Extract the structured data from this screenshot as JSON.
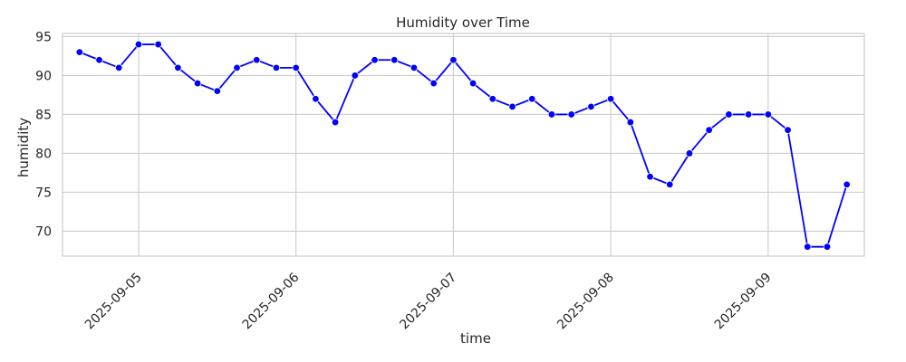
{
  "chart_data": {
    "type": "line",
    "title": "Humidity over Time",
    "xlabel": "time",
    "ylabel": "humidity",
    "x_ticks": [
      "2025-09-05",
      "2025-09-06",
      "2025-09-07",
      "2025-09-08",
      "2025-09-09"
    ],
    "y_ticks": [
      70,
      75,
      80,
      85,
      90,
      95
    ],
    "ylim": [
      66.8,
      95.4
    ],
    "xlim": [
      "2025-09-04 12:24",
      "2025-09-09 14:40"
    ],
    "grid": true,
    "series_color": "#0000ff",
    "marker": "circle",
    "series": [
      {
        "x": [
          "2025-09-04 15:00",
          "2025-09-04 18:00",
          "2025-09-04 21:00",
          "2025-09-05 00:00",
          "2025-09-05 03:00",
          "2025-09-05 06:00",
          "2025-09-05 09:00",
          "2025-09-05 12:00",
          "2025-09-05 15:00",
          "2025-09-05 18:00",
          "2025-09-05 21:00",
          "2025-09-06 00:00",
          "2025-09-06 03:00",
          "2025-09-06 06:00",
          "2025-09-06 09:00",
          "2025-09-06 12:00",
          "2025-09-06 15:00",
          "2025-09-06 18:00",
          "2025-09-06 21:00",
          "2025-09-07 00:00",
          "2025-09-07 03:00",
          "2025-09-07 06:00",
          "2025-09-07 09:00",
          "2025-09-07 12:00",
          "2025-09-07 15:00",
          "2025-09-07 18:00",
          "2025-09-07 21:00",
          "2025-09-08 00:00",
          "2025-09-08 03:00",
          "2025-09-08 06:00",
          "2025-09-08 09:00",
          "2025-09-08 12:00",
          "2025-09-08 15:00",
          "2025-09-08 18:00",
          "2025-09-08 21:00",
          "2025-09-09 00:00",
          "2025-09-09 03:00",
          "2025-09-09 06:00",
          "2025-09-09 09:00",
          "2025-09-09 12:00"
        ],
        "values": [
          93,
          92,
          91,
          94,
          94,
          91,
          89,
          88,
          91,
          92,
          91,
          91,
          87,
          84,
          90,
          92,
          92,
          91,
          89,
          92,
          89,
          87,
          86,
          87,
          85,
          85,
          86,
          87,
          84,
          77,
          76,
          80,
          83,
          85,
          85,
          85,
          83,
          68,
          68,
          76
        ]
      }
    ]
  }
}
